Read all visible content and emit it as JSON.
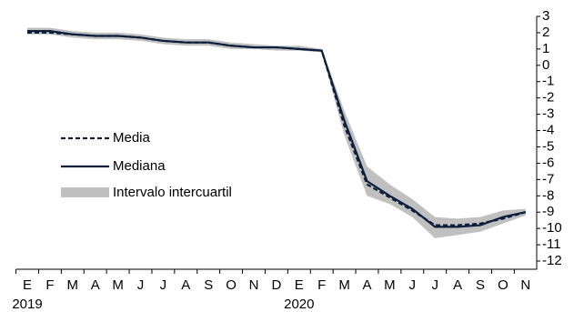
{
  "chart_data": {
    "type": "line",
    "categories": [
      "E",
      "F",
      "M",
      "A",
      "M",
      "J",
      "J",
      "A",
      "S",
      "O",
      "N",
      "D",
      "E",
      "F",
      "M",
      "A",
      "M",
      "J",
      "J",
      "A",
      "S",
      "O",
      "N"
    ],
    "years": [
      {
        "label": "2019",
        "start": 0
      },
      {
        "label": "2020",
        "start": 12
      }
    ],
    "series": [
      {
        "name": "Media",
        "color": "#0d1f3c",
        "dash": true,
        "values": [
          2.0,
          2.0,
          1.9,
          1.8,
          1.8,
          1.7,
          1.5,
          1.4,
          1.4,
          1.2,
          1.1,
          1.1,
          1.0,
          0.9,
          -3.7,
          -7.3,
          -8.1,
          -8.9,
          -9.8,
          -9.8,
          -9.7,
          -9.4,
          -9.0
        ]
      },
      {
        "name": "Mediana",
        "color": "#0d1f3c",
        "dash": false,
        "values": [
          2.1,
          2.1,
          1.9,
          1.8,
          1.8,
          1.7,
          1.5,
          1.4,
          1.4,
          1.2,
          1.1,
          1.1,
          1.0,
          0.9,
          -3.4,
          -7.1,
          -8.0,
          -8.8,
          -9.9,
          -9.9,
          -9.8,
          -9.3,
          -9.0
        ]
      }
    ],
    "band": {
      "name": "Intervalo intercuartil",
      "color": "#c0c0c0",
      "low": [
        1.9,
        1.9,
        1.7,
        1.6,
        1.6,
        1.5,
        1.3,
        1.2,
        1.2,
        1.0,
        1.0,
        0.9,
        0.9,
        0.8,
        -4.3,
        -8.0,
        -8.5,
        -9.3,
        -10.6,
        -10.4,
        -10.2,
        -9.7,
        -9.2
      ],
      "high": [
        2.3,
        2.3,
        2.1,
        2.0,
        2.0,
        1.9,
        1.7,
        1.6,
        1.6,
        1.4,
        1.3,
        1.2,
        1.2,
        1.0,
        -2.8,
        -6.2,
        -7.3,
        -8.2,
        -9.3,
        -9.4,
        -9.3,
        -8.9,
        -8.8
      ]
    },
    "ylim": [
      -12.5,
      3
    ],
    "yticks": [
      3,
      2,
      1,
      0,
      -1,
      -2,
      -3,
      -4,
      -5,
      -6,
      -7,
      -8,
      -9,
      -10,
      -11,
      -12
    ]
  }
}
